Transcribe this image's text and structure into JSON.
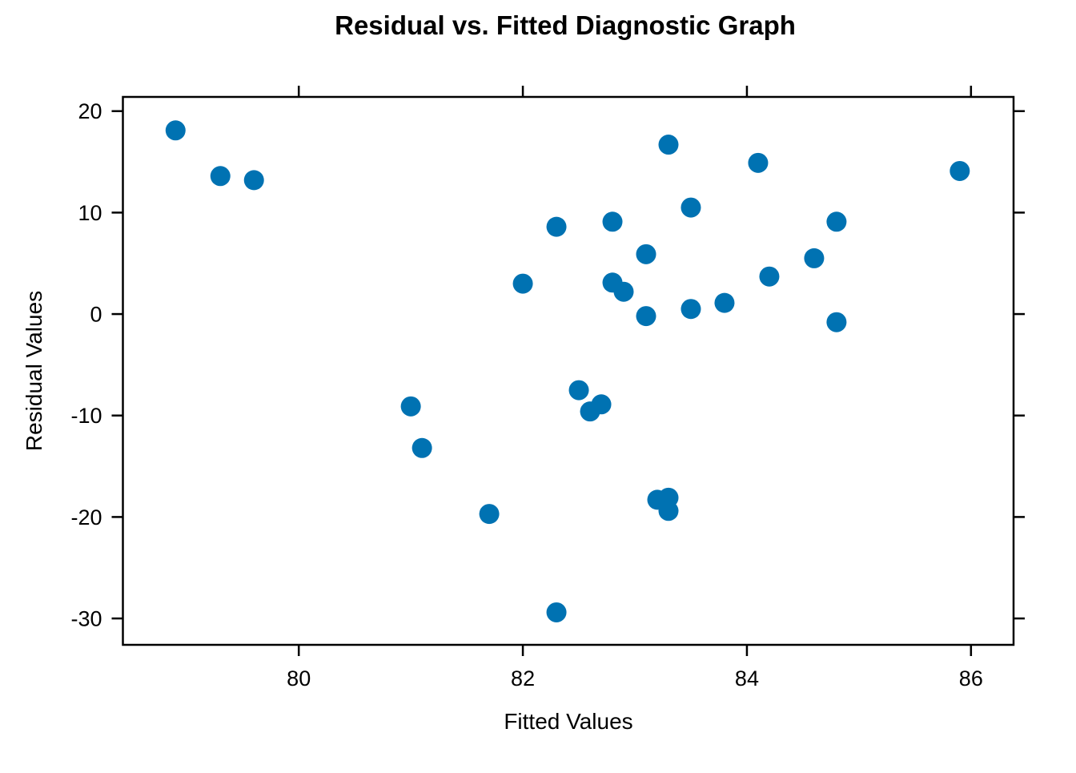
{
  "chart_data": {
    "type": "scatter",
    "title": "Residual vs. Fitted Diagnostic Graph",
    "xlabel": "Fitted Values",
    "ylabel": "Residual Values",
    "x_ticks": [
      80,
      82,
      84,
      86
    ],
    "y_ticks": [
      -30,
      -20,
      -10,
      0,
      10,
      20
    ],
    "xlim": [
      78.43,
      86.38
    ],
    "ylim": [
      -32.6,
      21.4
    ],
    "grid": false,
    "legend": "none",
    "axis_color": "#000000",
    "background_color": "#ffffff",
    "point_color": "#0072B2",
    "point_radius_px": 12.5,
    "points": [
      [
        78.9,
        18.1
      ],
      [
        79.3,
        13.6
      ],
      [
        79.6,
        13.2
      ],
      [
        81.0,
        -9.1
      ],
      [
        81.1,
        -13.2
      ],
      [
        81.7,
        -19.7
      ],
      [
        82.0,
        3.0
      ],
      [
        82.3,
        8.6
      ],
      [
        82.3,
        -29.4
      ],
      [
        82.5,
        -7.5
      ],
      [
        82.6,
        -9.6
      ],
      [
        82.7,
        -8.9
      ],
      [
        82.8,
        9.1
      ],
      [
        82.8,
        3.1
      ],
      [
        82.9,
        2.2
      ],
      [
        83.1,
        5.9
      ],
      [
        83.1,
        -0.2
      ],
      [
        83.2,
        -18.3
      ],
      [
        83.3,
        -18.1
      ],
      [
        83.3,
        -19.4
      ],
      [
        83.3,
        16.7
      ],
      [
        83.5,
        10.5
      ],
      [
        83.5,
        0.5
      ],
      [
        83.8,
        1.1
      ],
      [
        84.1,
        14.9
      ],
      [
        84.2,
        3.7
      ],
      [
        84.6,
        5.5
      ],
      [
        84.8,
        9.1
      ],
      [
        84.8,
        -0.8
      ],
      [
        85.9,
        14.1
      ]
    ]
  }
}
